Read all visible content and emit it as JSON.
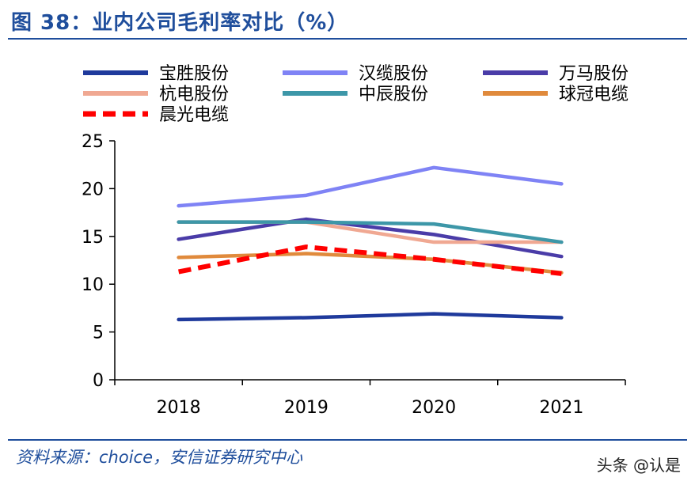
{
  "title": "图 38：业内公司毛利率对比（%）",
  "source": "资料来源：choice，安信证券研究中心",
  "watermark": "头条 @认是",
  "chart_data": {
    "type": "line",
    "categories": [
      "2018",
      "2019",
      "2020",
      "2021"
    ],
    "ylim": [
      0,
      25
    ],
    "yticks": [
      0,
      5,
      10,
      15,
      20,
      25
    ],
    "legend_position": "top",
    "grid": false,
    "series": [
      {
        "name": "宝胜股份",
        "color": "#1f3a9c",
        "dashed": false,
        "values": [
          6.3,
          6.5,
          6.9,
          6.5
        ]
      },
      {
        "name": "汉缆股份",
        "color": "#7f83f5",
        "dashed": false,
        "values": [
          18.2,
          19.3,
          22.2,
          20.5
        ]
      },
      {
        "name": "万马股份",
        "color": "#4a3ca8",
        "dashed": false,
        "values": [
          14.7,
          16.8,
          15.2,
          12.9
        ]
      },
      {
        "name": "杭电股份",
        "color": "#f0a892",
        "dashed": false,
        "values": [
          16.5,
          16.5,
          14.4,
          14.4
        ]
      },
      {
        "name": "中辰股份",
        "color": "#3d97a8",
        "dashed": false,
        "values": [
          16.5,
          16.5,
          16.3,
          14.4
        ]
      },
      {
        "name": "球冠电缆",
        "color": "#e08a3c",
        "dashed": false,
        "values": [
          12.8,
          13.2,
          12.6,
          11.2
        ]
      },
      {
        "name": "晨光电缆",
        "color": "#ff0000",
        "dashed": true,
        "values": [
          11.3,
          13.9,
          12.6,
          11.1
        ]
      }
    ]
  }
}
